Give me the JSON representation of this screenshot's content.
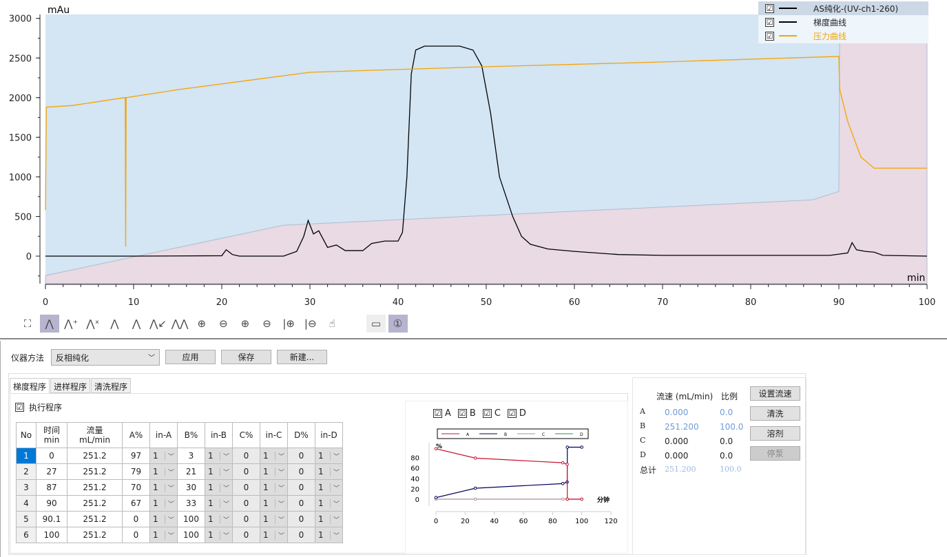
{
  "chart_data": {
    "type": "line",
    "ylabel": "mAu",
    "xlabel": "min",
    "xlim": [
      0,
      100
    ],
    "ylim": [
      -350,
      3050
    ],
    "xticks": [
      0,
      10,
      20,
      30,
      40,
      50,
      60,
      70,
      80,
      90,
      100
    ],
    "yticks": [
      0,
      500,
      1000,
      1500,
      2000,
      2500,
      3000
    ],
    "colors": {
      "region_top": "#d4e5f3",
      "region_bottom": "#e9dae3",
      "uv": "#000000",
      "gradient": "#b0bcd0",
      "pressure": "#f5a300"
    },
    "series": [
      {
        "name": "AS纯化-(UV-ch1-260)",
        "points": [
          [
            0,
            0
          ],
          [
            10,
            0
          ],
          [
            20,
            5
          ],
          [
            20.5,
            80
          ],
          [
            21.2,
            20
          ],
          [
            22,
            0
          ],
          [
            27,
            0
          ],
          [
            28.5,
            60
          ],
          [
            29.3,
            250
          ],
          [
            29.8,
            450
          ],
          [
            30.4,
            280
          ],
          [
            31,
            320
          ],
          [
            32,
            110
          ],
          [
            33,
            140
          ],
          [
            34,
            70
          ],
          [
            36,
            70
          ],
          [
            37,
            160
          ],
          [
            38.5,
            190
          ],
          [
            40,
            190
          ],
          [
            40.5,
            300
          ],
          [
            41,
            1000
          ],
          [
            41.5,
            2300
          ],
          [
            42,
            2600
          ],
          [
            43,
            2650
          ],
          [
            47,
            2650
          ],
          [
            48.5,
            2600
          ],
          [
            49.5,
            2400
          ],
          [
            50.5,
            1800
          ],
          [
            51.5,
            1000
          ],
          [
            53,
            500
          ],
          [
            54,
            250
          ],
          [
            55,
            150
          ],
          [
            57,
            90
          ],
          [
            60,
            60
          ],
          [
            65,
            20
          ],
          [
            70,
            10
          ],
          [
            89,
            10
          ],
          [
            91,
            40
          ],
          [
            91.5,
            170
          ],
          [
            92,
            80
          ],
          [
            93,
            60
          ],
          [
            94,
            50
          ],
          [
            95,
            10
          ],
          [
            100,
            0
          ]
        ]
      },
      {
        "name": "梯度曲线",
        "points": [
          [
            0,
            -245
          ],
          [
            27,
            390
          ],
          [
            87,
            710
          ],
          [
            90,
            815
          ],
          [
            90.1,
            3050
          ],
          [
            100,
            3050
          ]
        ]
      },
      {
        "name": "压力曲线",
        "points": [
          [
            0,
            580
          ],
          [
            0.1,
            1880
          ],
          [
            3,
            1900
          ],
          [
            9,
            2000
          ],
          [
            9.05,
            2000
          ],
          [
            9.1,
            120
          ],
          [
            9.15,
            2000
          ],
          [
            15,
            2100
          ],
          [
            30,
            2320
          ],
          [
            50,
            2390
          ],
          [
            70,
            2450
          ],
          [
            90,
            2520
          ],
          [
            90.1,
            2100
          ],
          [
            91,
            1700
          ],
          [
            92.5,
            1250
          ],
          [
            94,
            1110
          ],
          [
            100,
            1110
          ]
        ]
      }
    ]
  },
  "legend": [
    {
      "label": "AS纯化-(UV-ch1-260)",
      "checked": "☑"
    },
    {
      "label": "梯度曲线",
      "checked": "☑"
    },
    {
      "label": "压力曲线",
      "checked": "☑"
    }
  ],
  "toolbar": [
    "full-screen",
    "peak-select",
    "peak-add",
    "peak-delete",
    "peak-split",
    "baseline",
    "peak-move",
    "multi-peak",
    "zoom-in",
    "zoom-out",
    "zoom-in-x",
    "zoom-out-x",
    "zoom-in-y",
    "zoom-out-y",
    "pan-hand",
    "ruler",
    "marker-1"
  ],
  "method": {
    "label": "仪器方法",
    "value": "反相纯化",
    "apply": "应用",
    "save": "保存",
    "new": "新建..."
  },
  "tabs": [
    "梯度程序",
    "进样程序",
    "清洗程序"
  ],
  "execute": {
    "label": "执行程序",
    "checked": "☑"
  },
  "table": {
    "headers": [
      "No",
      "时间\nmin",
      "流量\nmL/min",
      "A%",
      "in-A",
      "B%",
      "in-B",
      "C%",
      "in-C",
      "D%",
      "in-D"
    ],
    "rows": [
      [
        "1",
        "0",
        "251.2",
        "97",
        "1",
        "3",
        "1",
        "0",
        "1",
        "0",
        "1"
      ],
      [
        "2",
        "27",
        "251.2",
        "79",
        "1",
        "21",
        "1",
        "0",
        "1",
        "0",
        "1"
      ],
      [
        "3",
        "87",
        "251.2",
        "70",
        "1",
        "30",
        "1",
        "0",
        "1",
        "0",
        "1"
      ],
      [
        "4",
        "90",
        "251.2",
        "67",
        "1",
        "33",
        "1",
        "0",
        "1",
        "0",
        "1"
      ],
      [
        "5",
        "90.1",
        "251.2",
        "0",
        "1",
        "100",
        "1",
        "0",
        "1",
        "0",
        "1"
      ],
      [
        "6",
        "100",
        "251.2",
        "0",
        "1",
        "100",
        "1",
        "0",
        "1",
        "0",
        "1"
      ]
    ]
  },
  "mini": {
    "checks": [
      "A",
      "B",
      "C",
      "D"
    ],
    "ylabel": "%",
    "xlabel": "分钟",
    "xticks": [
      0,
      20,
      40,
      60,
      80,
      100,
      120
    ],
    "yticks": [
      0,
      20,
      40,
      60,
      80
    ],
    "series": [
      {
        "name": "A",
        "color": "#c8102e",
        "points": [
          [
            0,
            97
          ],
          [
            27,
            79
          ],
          [
            87,
            70
          ],
          [
            90,
            67
          ],
          [
            90.1,
            0
          ],
          [
            100,
            0
          ]
        ]
      },
      {
        "name": "B",
        "color": "#00005a",
        "points": [
          [
            0,
            3
          ],
          [
            27,
            21
          ],
          [
            87,
            30
          ],
          [
            90,
            33
          ],
          [
            90.1,
            100
          ],
          [
            100,
            100
          ]
        ]
      },
      {
        "name": "C",
        "color": "#b08aa0",
        "points": [
          [
            0,
            0
          ],
          [
            27,
            0
          ],
          [
            87,
            0
          ],
          [
            90,
            0
          ],
          [
            90.1,
            0
          ],
          [
            100,
            0
          ]
        ]
      },
      {
        "name": "D",
        "color": "#2e8b57",
        "points": []
      }
    ]
  },
  "flow": {
    "h_flow": "流速 (mL/min)",
    "h_ratio": "比例",
    "rows": [
      {
        "ch": "A",
        "flow": "0.000",
        "ratio": "0.0"
      },
      {
        "ch": "B",
        "flow": "251.200",
        "ratio": "100.0"
      },
      {
        "ch": "C",
        "flow": "0.000",
        "ratio": "0.0"
      },
      {
        "ch": "D",
        "flow": "0.000",
        "ratio": "0.0"
      }
    ],
    "total": {
      "label": "总计",
      "flow": "251.200",
      "ratio": "100.0"
    },
    "buttons": [
      "设置流速",
      "清洗",
      "溶剂",
      "停泵"
    ]
  }
}
